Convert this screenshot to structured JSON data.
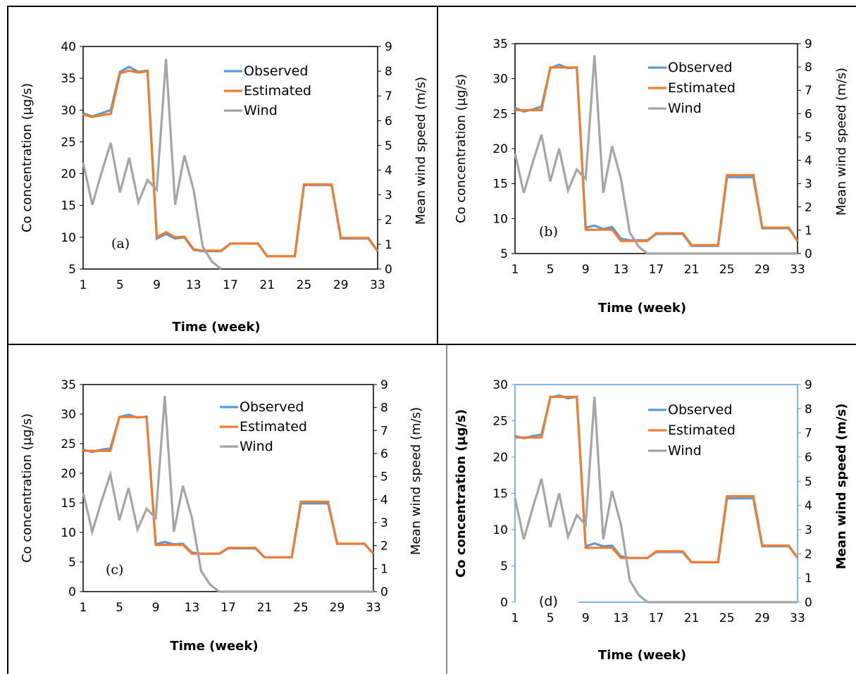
{
  "chart_data": [
    {
      "type": "line",
      "panel_label": "(a)",
      "xlabel": "Time (week)",
      "ylabel": "Co concentration (µg/s)",
      "y2label": "Mean wind speed (m/s)",
      "ylim": [
        5,
        40
      ],
      "y2lim": [
        0,
        9
      ],
      "x_ticks": [
        1,
        5,
        9,
        13,
        17,
        21,
        25,
        29,
        33
      ],
      "y_ticks": [
        5,
        10,
        15,
        20,
        25,
        30,
        35,
        40
      ],
      "y2_ticks": [
        0,
        1,
        2,
        3,
        4,
        5,
        6,
        7,
        8,
        9
      ],
      "legend_position": "top-right",
      "x": [
        1,
        2,
        3,
        4,
        5,
        6,
        7,
        8,
        9,
        10,
        11,
        12,
        13,
        14,
        15,
        16,
        17,
        18,
        19,
        20,
        21,
        22,
        23,
        24,
        25,
        26,
        27,
        28,
        29,
        30,
        31,
        32,
        33
      ],
      "series": [
        {
          "name": "Observed",
          "color": "#5B9BD5",
          "axis": "left",
          "values": [
            29.5,
            29,
            29.5,
            30,
            36,
            36.8,
            36,
            36.2,
            9.8,
            10.5,
            9.8,
            10,
            8,
            7.8,
            7.8,
            7.8,
            9,
            9,
            9,
            9,
            7,
            7,
            7,
            7,
            18.2,
            18.2,
            18.2,
            18.2,
            9.8,
            9.8,
            9.8,
            9.8,
            7.8
          ]
        },
        {
          "name": "Estimated",
          "color": "#ED7D31",
          "axis": "left",
          "values": [
            29.3,
            28.9,
            29.2,
            29.4,
            35.8,
            36.2,
            35.9,
            36.1,
            10,
            10.8,
            10,
            10.1,
            8.1,
            7.9,
            7.9,
            7.9,
            9,
            9,
            9,
            9,
            7,
            7,
            7,
            7,
            18.3,
            18.3,
            18.3,
            18.3,
            9.9,
            9.9,
            9.9,
            9.9,
            7.8
          ]
        },
        {
          "name": "Wind",
          "color": "#A5A5A5",
          "axis": "right",
          "values": [
            4.3,
            2.6,
            3.9,
            5.1,
            3.1,
            4.5,
            2.7,
            3.6,
            3.2,
            8.5,
            2.6,
            4.6,
            3.2,
            0.9,
            0.3,
            0,
            null,
            null,
            null,
            null,
            null,
            null,
            null,
            null,
            null,
            null,
            null,
            null,
            null,
            null,
            null,
            null,
            null
          ]
        }
      ]
    },
    {
      "type": "line",
      "panel_label": "(b)",
      "xlabel": "Time (week)",
      "ylabel": "Co concentration (µg/s)",
      "y2label": "Mean wind speed (m/s)",
      "ylim": [
        5,
        35
      ],
      "y2lim": [
        0,
        9
      ],
      "x_ticks": [
        1,
        5,
        9,
        13,
        17,
        21,
        25,
        29,
        33
      ],
      "y_ticks": [
        5,
        10,
        15,
        20,
        25,
        30,
        35
      ],
      "y2_ticks": [
        0,
        1,
        2,
        3,
        4,
        5,
        6,
        7,
        8,
        9
      ],
      "legend_position": "top-right",
      "x": [
        1,
        2,
        3,
        4,
        5,
        6,
        7,
        8,
        9,
        10,
        11,
        12,
        13,
        14,
        15,
        16,
        17,
        18,
        19,
        20,
        21,
        22,
        23,
        24,
        25,
        26,
        27,
        28,
        29,
        30,
        31,
        32,
        33
      ],
      "series": [
        {
          "name": "Observed",
          "color": "#5B9BD5",
          "axis": "left",
          "values": [
            25.8,
            25.3,
            25.6,
            26,
            31.5,
            32,
            31.5,
            31.6,
            8.7,
            9,
            8.5,
            8.8,
            7.1,
            6.9,
            6.9,
            6.9,
            7.8,
            7.8,
            7.8,
            7.8,
            6.1,
            6.1,
            6.1,
            6.1,
            15.9,
            15.9,
            15.9,
            15.9,
            8.6,
            8.6,
            8.6,
            8.6,
            6.8
          ]
        },
        {
          "name": "Estimated",
          "color": "#ED7D31",
          "axis": "left",
          "values": [
            25.5,
            25.5,
            25.5,
            25.5,
            31.6,
            31.6,
            31.6,
            31.6,
            8.4,
            8.4,
            8.4,
            8.4,
            6.8,
            6.8,
            6.8,
            6.8,
            7.9,
            7.9,
            7.9,
            7.9,
            6.2,
            6.2,
            6.2,
            6.2,
            16.2,
            16.2,
            16.2,
            16.2,
            8.7,
            8.7,
            8.7,
            8.7,
            6.8
          ]
        },
        {
          "name": "Wind",
          "color": "#A5A5A5",
          "axis": "right",
          "values": [
            4.3,
            2.6,
            3.9,
            5.1,
            3.1,
            4.5,
            2.7,
            3.6,
            3.2,
            8.5,
            2.6,
            4.6,
            3.2,
            0.9,
            0.3,
            0,
            0,
            0,
            0,
            0,
            0,
            0,
            0,
            0,
            0,
            0,
            0,
            0,
            0,
            0,
            0,
            0,
            0
          ]
        }
      ]
    },
    {
      "type": "line",
      "panel_label": "(c)",
      "xlabel": "Time (week)",
      "ylabel": "Co concentration (µg/s)",
      "y2label": "Mean wind speed (m/s)",
      "ylim": [
        0,
        35
      ],
      "y2lim": [
        0,
        9
      ],
      "x_ticks": [
        1,
        5,
        9,
        13,
        17,
        21,
        25,
        29,
        33
      ],
      "y_ticks": [
        0,
        5,
        10,
        15,
        20,
        25,
        30,
        35
      ],
      "y2_ticks": [
        0,
        1,
        2,
        3,
        4,
        5,
        6,
        7,
        8,
        9
      ],
      "legend_position": "top-right",
      "x": [
        1,
        2,
        3,
        4,
        5,
        6,
        7,
        8,
        9,
        10,
        11,
        12,
        13,
        14,
        15,
        16,
        17,
        18,
        19,
        20,
        21,
        22,
        23,
        24,
        25,
        26,
        27,
        28,
        29,
        30,
        31,
        32,
        33
      ],
      "series": [
        {
          "name": "Observed",
          "color": "#5B9BD5",
          "axis": "left",
          "values": [
            24,
            23.6,
            24,
            24.2,
            29.5,
            29.9,
            29.4,
            29.6,
            8,
            8.4,
            8,
            8.1,
            6.6,
            6.4,
            6.4,
            6.4,
            7.3,
            7.3,
            7.3,
            7.3,
            5.8,
            5.8,
            5.8,
            5.8,
            14.9,
            14.9,
            14.9,
            14.9,
            8.1,
            8.1,
            8.1,
            8.1,
            6.4
          ]
        },
        {
          "name": "Estimated",
          "color": "#ED7D31",
          "axis": "left",
          "values": [
            23.8,
            23.8,
            23.8,
            23.8,
            29.5,
            29.5,
            29.5,
            29.5,
            7.9,
            7.9,
            7.9,
            7.9,
            6.4,
            6.4,
            6.4,
            6.4,
            7.4,
            7.4,
            7.4,
            7.4,
            5.8,
            5.8,
            5.8,
            5.8,
            15.2,
            15.2,
            15.2,
            15.2,
            8.1,
            8.1,
            8.1,
            8.1,
            6.4
          ]
        },
        {
          "name": "Wind",
          "color": "#A5A5A5",
          "axis": "right",
          "values": [
            4.3,
            2.6,
            3.9,
            5.1,
            3.1,
            4.5,
            2.7,
            3.6,
            3.2,
            8.5,
            2.6,
            4.6,
            3.2,
            0.9,
            0.3,
            0,
            0,
            0,
            0,
            0,
            0,
            0,
            0,
            0,
            0,
            0,
            0,
            0,
            0,
            0,
            0,
            0,
            0
          ]
        }
      ]
    },
    {
      "type": "line",
      "panel_label": "(d)",
      "xlabel": "Time (week)",
      "ylabel": "Co concentration (µg/s)",
      "y2label": "Mean wind speed (m/s)",
      "ylim": [
        0,
        30
      ],
      "y2lim": [
        0,
        9
      ],
      "x_ticks": [
        1,
        5,
        9,
        13,
        17,
        21,
        25,
        29,
        33
      ],
      "y_ticks": [
        0,
        5,
        10,
        15,
        20,
        25,
        30
      ],
      "y2_ticks": [
        0,
        1,
        2,
        3,
        4,
        5,
        6,
        7,
        8,
        9
      ],
      "legend_position": "top-right",
      "x": [
        1,
        2,
        3,
        4,
        5,
        6,
        7,
        8,
        9,
        10,
        11,
        12,
        13,
        14,
        15,
        16,
        17,
        18,
        19,
        20,
        21,
        22,
        23,
        24,
        25,
        26,
        27,
        28,
        29,
        30,
        31,
        32,
        33
      ],
      "series": [
        {
          "name": "Observed",
          "color": "#5B9BD5",
          "axis": "left",
          "values": [
            22.9,
            22.6,
            22.9,
            23.1,
            28.2,
            28.5,
            28.1,
            28.3,
            7.7,
            8.1,
            7.7,
            7.8,
            6.3,
            6.1,
            6.1,
            6.1,
            6.9,
            6.9,
            6.9,
            6.9,
            5.5,
            5.5,
            5.5,
            5.5,
            14.3,
            14.3,
            14.3,
            14.3,
            7.7,
            7.7,
            7.7,
            7.7,
            6.1
          ]
        },
        {
          "name": "Estimated",
          "color": "#ED7D31",
          "axis": "left",
          "values": [
            22.7,
            22.7,
            22.7,
            22.7,
            28.3,
            28.3,
            28.3,
            28.3,
            7.5,
            7.5,
            7.5,
            7.5,
            6.1,
            6.1,
            6.1,
            6.1,
            7,
            7,
            7,
            7,
            5.5,
            5.5,
            5.5,
            5.5,
            14.6,
            14.6,
            14.6,
            14.6,
            7.8,
            7.8,
            7.8,
            7.8,
            6.1
          ]
        },
        {
          "name": "Wind",
          "color": "#A5A5A5",
          "axis": "right",
          "values": [
            4.3,
            2.6,
            3.9,
            5.1,
            3.1,
            4.5,
            2.7,
            3.6,
            3.2,
            8.5,
            2.6,
            4.6,
            3.2,
            0.9,
            0.3,
            0,
            0,
            0,
            0,
            0,
            0,
            0,
            0,
            0,
            0,
            0,
            0,
            0,
            0,
            0,
            0,
            0,
            0
          ]
        }
      ]
    }
  ]
}
